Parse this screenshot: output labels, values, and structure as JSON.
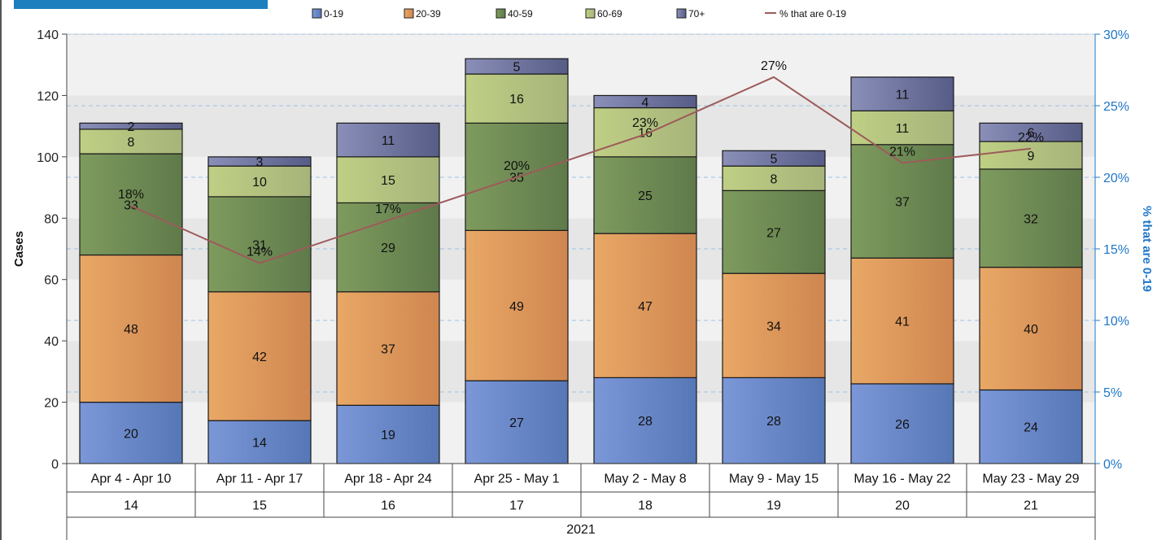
{
  "chart_data": {
    "type": "bar",
    "stacked": true,
    "categories": [
      "Apr 4 - Apr 10",
      "Apr 11 - Apr 17",
      "Apr 18 - Apr 24",
      "Apr 25 - May 1",
      "May 2 - May 8",
      "May 9 - May 15",
      "May 16 - May 22",
      "May 23 - May 29"
    ],
    "week_numbers": [
      "14",
      "15",
      "16",
      "17",
      "18",
      "19",
      "20",
      "21"
    ],
    "year": "2021",
    "series": [
      {
        "name": "0-19",
        "values": [
          20,
          14,
          19,
          27,
          28,
          28,
          26,
          24
        ],
        "color_top": "#7b97d8",
        "color_bottom": "#5677b6"
      },
      {
        "name": "20-39",
        "values": [
          48,
          42,
          37,
          49,
          47,
          34,
          41,
          40
        ],
        "color_top": "#e9a866",
        "color_bottom": "#cf8650"
      },
      {
        "name": "40-59",
        "values": [
          33,
          31,
          29,
          35,
          25,
          27,
          37,
          32
        ],
        "color_top": "#7e9b5e",
        "color_bottom": "#5f7a4a"
      },
      {
        "name": "60-69",
        "values": [
          8,
          10,
          15,
          16,
          16,
          8,
          11,
          9
        ],
        "color_top": "#bfcf84",
        "color_bottom": "#a6b47a"
      },
      {
        "name": "70+",
        "values": [
          2,
          3,
          11,
          5,
          4,
          5,
          11,
          6
        ],
        "color_top": "#8a8fb8",
        "color_bottom": "#565c86"
      }
    ],
    "line_series": {
      "name": "% that are 0-19",
      "values": [
        18,
        14,
        17,
        20,
        23,
        27,
        21,
        22
      ],
      "labels": [
        "18%",
        "14%",
        "17%",
        "20%",
        "23%",
        "27%",
        "21%",
        "22%"
      ],
      "color": "#9e5a5a"
    },
    "ylabel": "Cases",
    "y2label": "% that are 0-19",
    "ylim": [
      0,
      140
    ],
    "yticks": [
      "0",
      "20",
      "40",
      "60",
      "80",
      "100",
      "120",
      "140"
    ],
    "y2lim": [
      0,
      30
    ],
    "y2ticks": [
      "0%",
      "5%",
      "10%",
      "15%",
      "20%",
      "25%",
      "30%"
    ],
    "legend_position": "top",
    "grid": true
  }
}
